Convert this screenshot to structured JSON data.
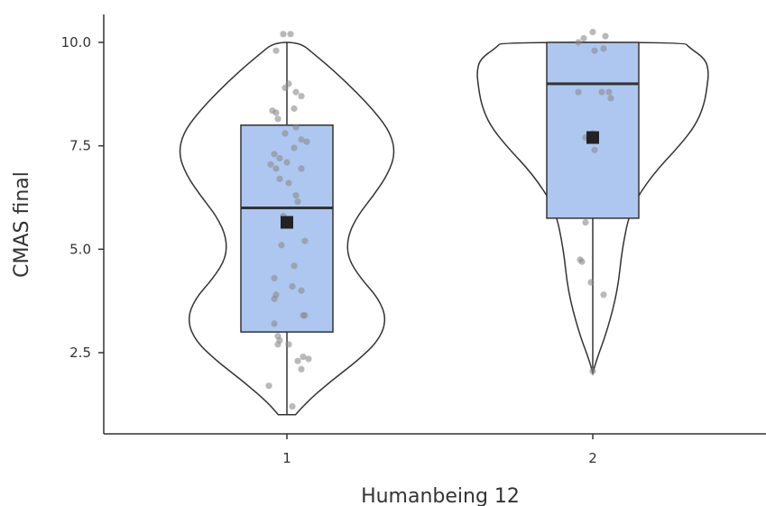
{
  "chart_data": {
    "type": "violin",
    "title": "",
    "xlabel": "Humanbeing 12",
    "ylabel": "CMAS final",
    "ylim": [
      0.55,
      10.7
    ],
    "yticks": [
      2.5,
      5.0,
      7.5,
      10.0
    ],
    "ytick_labels": [
      "2.5",
      "5.0",
      "7.5",
      "10.0"
    ],
    "grid": false,
    "box_fill": "#aec7f0",
    "violin_fill": "#ffffff",
    "outline_color": "#333333",
    "point_color": "#8a8a8a",
    "mean_color": "#222222",
    "groups": [
      {
        "label": "1",
        "box": {
          "min": 1.0,
          "q1": 3.0,
          "median": 6.0,
          "q3": 8.0,
          "max": 10.0
        },
        "mean": 5.65,
        "violin_profile": [
          [
            1.0,
            0.08
          ],
          [
            1.3,
            0.18
          ],
          [
            1.8,
            0.4
          ],
          [
            2.3,
            0.65
          ],
          [
            2.8,
            0.85
          ],
          [
            3.3,
            0.92
          ],
          [
            3.8,
            0.85
          ],
          [
            4.3,
            0.68
          ],
          [
            4.8,
            0.56
          ],
          [
            5.3,
            0.56
          ],
          [
            5.8,
            0.65
          ],
          [
            6.3,
            0.8
          ],
          [
            6.8,
            0.93
          ],
          [
            7.3,
            1.0
          ],
          [
            7.8,
            0.96
          ],
          [
            8.3,
            0.82
          ],
          [
            8.8,
            0.64
          ],
          [
            9.3,
            0.44
          ],
          [
            9.7,
            0.26
          ],
          [
            10.0,
            0.12
          ]
        ],
        "points": [
          [
            -0.02,
            10.2
          ],
          [
            0.02,
            10.2
          ],
          [
            -0.06,
            9.8
          ],
          [
            0.01,
            9.0
          ],
          [
            -0.01,
            8.9
          ],
          [
            0.05,
            8.8
          ],
          [
            0.08,
            8.7
          ],
          [
            0.04,
            8.4
          ],
          [
            -0.08,
            8.35
          ],
          [
            -0.06,
            8.3
          ],
          [
            -0.05,
            8.15
          ],
          [
            0.05,
            7.95
          ],
          [
            -0.01,
            7.8
          ],
          [
            0.08,
            7.65
          ],
          [
            0.11,
            7.6
          ],
          [
            0.04,
            7.45
          ],
          [
            -0.07,
            7.3
          ],
          [
            -0.04,
            7.2
          ],
          [
            0.0,
            7.1
          ],
          [
            -0.09,
            7.05
          ],
          [
            -0.06,
            6.95
          ],
          [
            0.08,
            6.95
          ],
          [
            -0.04,
            6.7
          ],
          [
            0.01,
            6.6
          ],
          [
            0.05,
            6.3
          ],
          [
            0.06,
            6.15
          ],
          [
            -0.02,
            5.8
          ],
          [
            0.1,
            5.2
          ],
          [
            -0.03,
            5.1
          ],
          [
            0.04,
            4.6
          ],
          [
            -0.07,
            4.3
          ],
          [
            0.03,
            4.1
          ],
          [
            0.08,
            4.0
          ],
          [
            -0.06,
            3.9
          ],
          [
            -0.07,
            3.8
          ],
          [
            0.09,
            3.4
          ],
          [
            0.1,
            3.4
          ],
          [
            -0.07,
            3.2
          ],
          [
            -0.05,
            2.9
          ],
          [
            -0.04,
            2.8
          ],
          [
            -0.05,
            2.7
          ],
          [
            0.01,
            2.7
          ],
          [
            0.09,
            2.4
          ],
          [
            0.12,
            2.35
          ],
          [
            0.06,
            2.3
          ],
          [
            0.08,
            2.1
          ],
          [
            -0.1,
            1.7
          ],
          [
            0.03,
            1.2
          ]
        ]
      },
      {
        "label": "2",
        "box": {
          "min": 2.0,
          "q1": 5.75,
          "median": 9.0,
          "q3": 10.0,
          "max": 10.0
        },
        "mean": 7.7,
        "violin_profile": [
          [
            2.0,
            0.0
          ],
          [
            2.3,
            0.03
          ],
          [
            3.0,
            0.13
          ],
          [
            4.0,
            0.23
          ],
          [
            5.0,
            0.27
          ],
          [
            6.0,
            0.35
          ],
          [
            6.8,
            0.55
          ],
          [
            7.5,
            0.8
          ],
          [
            8.0,
            0.95
          ],
          [
            8.5,
            1.03
          ],
          [
            9.0,
            1.06
          ],
          [
            9.3,
            1.07
          ],
          [
            9.6,
            1.04
          ],
          [
            9.9,
            0.88
          ],
          [
            10.0,
            0.85
          ]
        ],
        "points": [
          [
            0.0,
            10.25
          ],
          [
            -0.05,
            10.1
          ],
          [
            0.07,
            10.15
          ],
          [
            -0.08,
            10.0
          ],
          [
            0.06,
            9.85
          ],
          [
            0.01,
            9.8
          ],
          [
            -0.08,
            8.8
          ],
          [
            0.05,
            8.8
          ],
          [
            0.09,
            8.8
          ],
          [
            0.1,
            8.65
          ],
          [
            0.0,
            7.8
          ],
          [
            -0.04,
            7.7
          ],
          [
            0.01,
            7.4
          ],
          [
            -0.04,
            5.65
          ],
          [
            -0.07,
            4.75
          ],
          [
            -0.06,
            4.7
          ],
          [
            -0.01,
            4.2
          ],
          [
            0.06,
            3.9
          ],
          [
            0.0,
            2.05
          ]
        ]
      }
    ]
  }
}
